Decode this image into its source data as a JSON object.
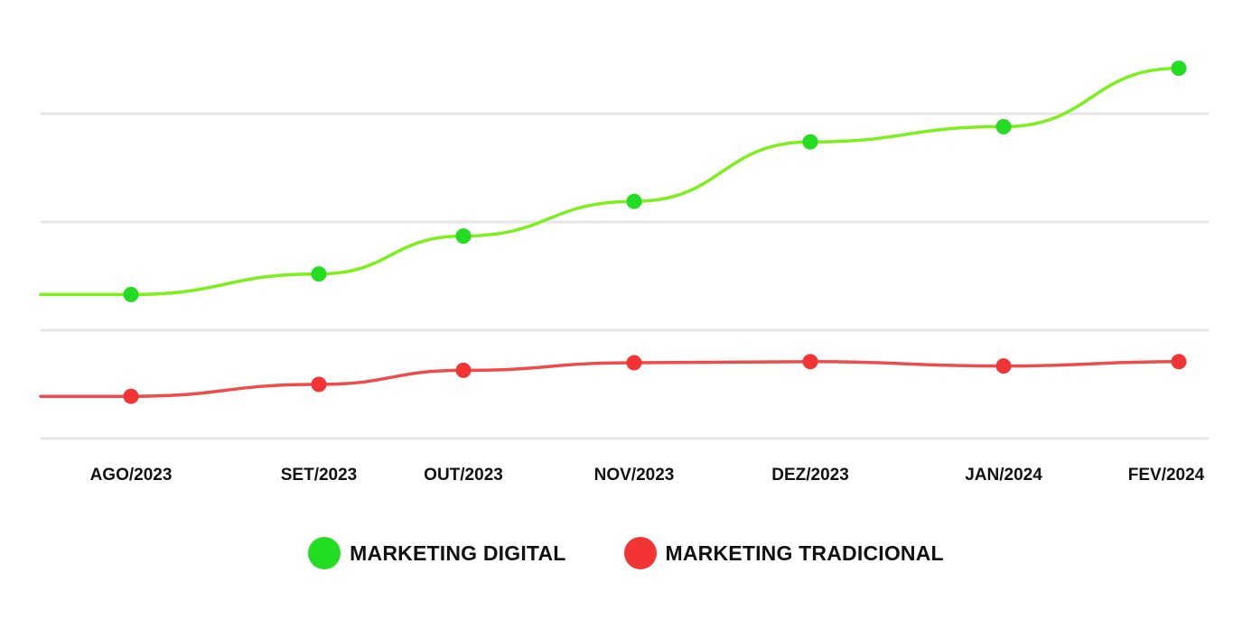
{
  "chart_data": {
    "type": "line",
    "categories": [
      "AGO/2023",
      "SET/2023",
      "OUT/2023",
      "NOV/2023",
      "DEZ/2023",
      "JAN/2024",
      "FEV/2024"
    ],
    "series": [
      {
        "name": "MARKETING DIGITAL",
        "color": "#7cf01a",
        "marker_color": "#22dd22",
        "values": [
          13.3,
          15.2,
          18.7,
          21.9,
          27.4,
          28.8,
          34.2
        ]
      },
      {
        "name": "MARKETING TRADICIONAL",
        "color": "#ee4b4b",
        "marker_color": "#f23434",
        "values": [
          3.9,
          5.0,
          6.3,
          7.0,
          7.1,
          6.7,
          7.1
        ]
      }
    ],
    "ylim": [
      0,
      39
    ],
    "grid": true,
    "legend_position": "bottom",
    "title": "",
    "xlabel": "",
    "ylabel": ""
  }
}
